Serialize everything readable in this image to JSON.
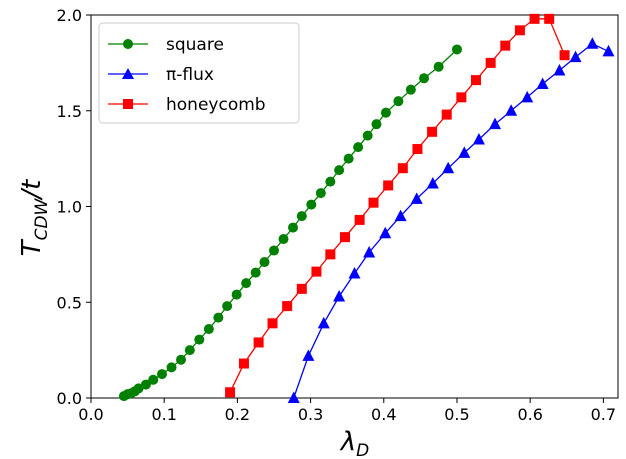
{
  "chart_data": {
    "type": "line",
    "xlabel": "λ",
    "xlabel_sub": "D",
    "ylabel": "T",
    "ylabel_sub": "CDW",
    "ylabel_suffix": "/t",
    "xlim": [
      0.0,
      0.72
    ],
    "ylim": [
      0.0,
      2.0
    ],
    "xticks": [
      "0.0",
      "0.1",
      "0.2",
      "0.3",
      "0.4",
      "0.5",
      "0.6",
      "0.7"
    ],
    "yticks": [
      "0.0",
      "0.5",
      "1.0",
      "1.5",
      "2.0"
    ],
    "grid": false,
    "legend_position": "top-left",
    "series": [
      {
        "name": "square",
        "color": "#008000",
        "marker": "circle",
        "x": [
          0.045,
          0.05,
          0.055,
          0.06,
          0.065,
          0.075,
          0.085,
          0.097,
          0.11,
          0.123,
          0.135,
          0.148,
          0.161,
          0.174,
          0.186,
          0.199,
          0.212,
          0.225,
          0.237,
          0.25,
          0.263,
          0.276,
          0.288,
          0.301,
          0.314,
          0.327,
          0.339,
          0.352,
          0.365,
          0.378,
          0.39,
          0.403,
          0.42,
          0.437,
          0.455,
          0.475,
          0.5
        ],
        "y": [
          0.01,
          0.02,
          0.025,
          0.035,
          0.05,
          0.07,
          0.095,
          0.125,
          0.16,
          0.2,
          0.25,
          0.305,
          0.36,
          0.42,
          0.48,
          0.54,
          0.6,
          0.655,
          0.71,
          0.77,
          0.83,
          0.89,
          0.95,
          1.01,
          1.07,
          1.13,
          1.19,
          1.25,
          1.31,
          1.37,
          1.43,
          1.49,
          1.55,
          1.61,
          1.67,
          1.73,
          1.82
        ]
      },
      {
        "name": "π-flux",
        "color": "#0000ff",
        "marker": "triangle",
        "x": [
          0.277,
          0.297,
          0.318,
          0.339,
          0.36,
          0.38,
          0.402,
          0.423,
          0.445,
          0.467,
          0.488,
          0.51,
          0.53,
          0.552,
          0.574,
          0.596,
          0.617,
          0.64,
          0.662,
          0.685,
          0.707
        ],
        "y": [
          0.0,
          0.22,
          0.39,
          0.53,
          0.65,
          0.76,
          0.86,
          0.95,
          1.04,
          1.12,
          1.2,
          1.28,
          1.35,
          1.43,
          1.5,
          1.57,
          1.64,
          1.71,
          1.78,
          1.85,
          1.81
        ]
      },
      {
        "name": "honeycomb",
        "color": "#ff0000",
        "marker": "square",
        "x": [
          0.19,
          0.209,
          0.229,
          0.248,
          0.268,
          0.288,
          0.308,
          0.327,
          0.347,
          0.367,
          0.386,
          0.406,
          0.426,
          0.446,
          0.466,
          0.486,
          0.506,
          0.526,
          0.546,
          0.566,
          0.586,
          0.606,
          0.626,
          0.647
        ],
        "y": [
          0.03,
          0.18,
          0.29,
          0.39,
          0.48,
          0.57,
          0.66,
          0.75,
          0.84,
          0.93,
          1.02,
          1.11,
          1.2,
          1.3,
          1.39,
          1.48,
          1.57,
          1.66,
          1.75,
          1.84,
          1.92,
          1.98,
          1.98,
          1.79
        ]
      }
    ]
  }
}
